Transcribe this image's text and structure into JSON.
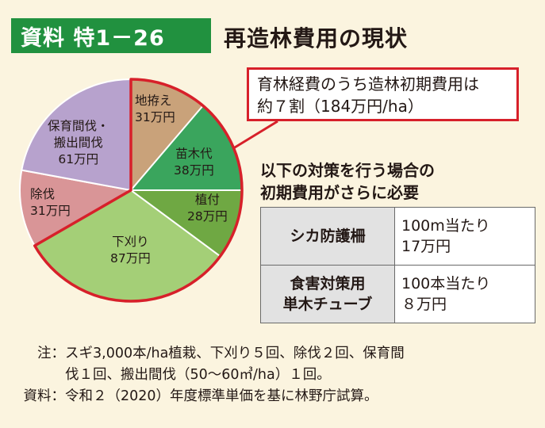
{
  "header": {
    "badge": "資料 特1－26",
    "title": "再造林費用の現状"
  },
  "chart_data": {
    "type": "pie",
    "unit": "万円",
    "slices": [
      {
        "label": "地拵え",
        "value": 31,
        "value_text": "31万円",
        "color": "#c9a27a"
      },
      {
        "label": "苗木代",
        "value": 38,
        "value_text": "38万円",
        "color": "#3aa55d"
      },
      {
        "label": "植付",
        "value": 28,
        "value_text": "28万円",
        "color": "#6fa843"
      },
      {
        "label": "下刈り",
        "value": 87,
        "value_text": "87万円",
        "color": "#a4cf77"
      },
      {
        "label": "除伐",
        "value": 31,
        "value_text": "31万円",
        "color": "#d99597"
      },
      {
        "label": "保育間伐・搬出間伐",
        "label_lines": [
          "保育間伐・",
          "搬出間伐"
        ],
        "value": 61,
        "value_text": "61万円",
        "color": "#b7a2cd"
      }
    ],
    "highlight_color": "#d7202a"
  },
  "callout": {
    "line1": "育林経費のうち造林初期費用は",
    "line2": "約７割（184万円/ha）"
  },
  "measures": {
    "heading_line1": "以下の対策を行う場合の",
    "heading_line2": "初期費用がさらに必要",
    "rows": [
      {
        "name": "シカ防護柵",
        "name_line2": "",
        "cost_line1": "100m当たり",
        "cost_line2": "17万円"
      },
      {
        "name": "食害対策用",
        "name_line2": "単木チューブ",
        "cost_line1": "100本当たり",
        "cost_line2": "８万円"
      }
    ]
  },
  "footnotes": {
    "note_label": "注：",
    "note_line1": "スギ3,000本/ha植栽、下刈り５回、除伐２回、保育間",
    "note_line2": "伐１回、搬出間伐（50～60㎥/ha）１回。",
    "source_label": "資料：",
    "source_text": "令和２（2020）年度標準単価を基に林野庁試算。"
  }
}
